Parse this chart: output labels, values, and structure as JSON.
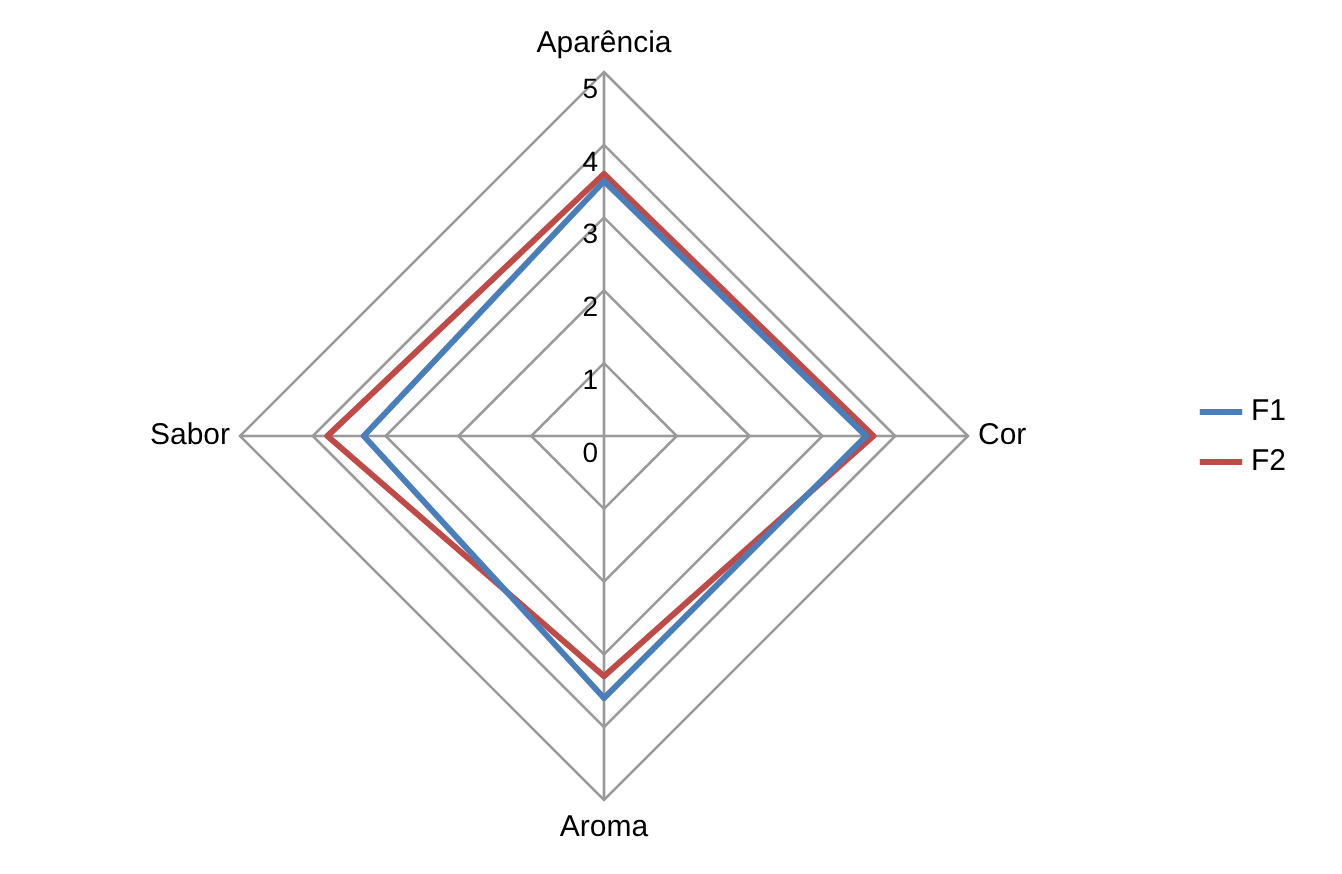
{
  "chart_data": {
    "type": "radar",
    "categories": [
      "Aparência",
      "Cor",
      "Aroma",
      "Sabor"
    ],
    "series": [
      {
        "name": "F1",
        "color": "#4a7ebb",
        "values": [
          3.5,
          3.6,
          3.6,
          3.3
        ]
      },
      {
        "name": "F2",
        "color": "#be4b48",
        "values": [
          3.6,
          3.7,
          3.3,
          3.8
        ]
      }
    ],
    "ylim": [
      0,
      5
    ],
    "yticks": [
      0,
      1,
      2,
      3,
      4,
      5
    ],
    "grid": true,
    "legend": "right",
    "marker": "none"
  }
}
